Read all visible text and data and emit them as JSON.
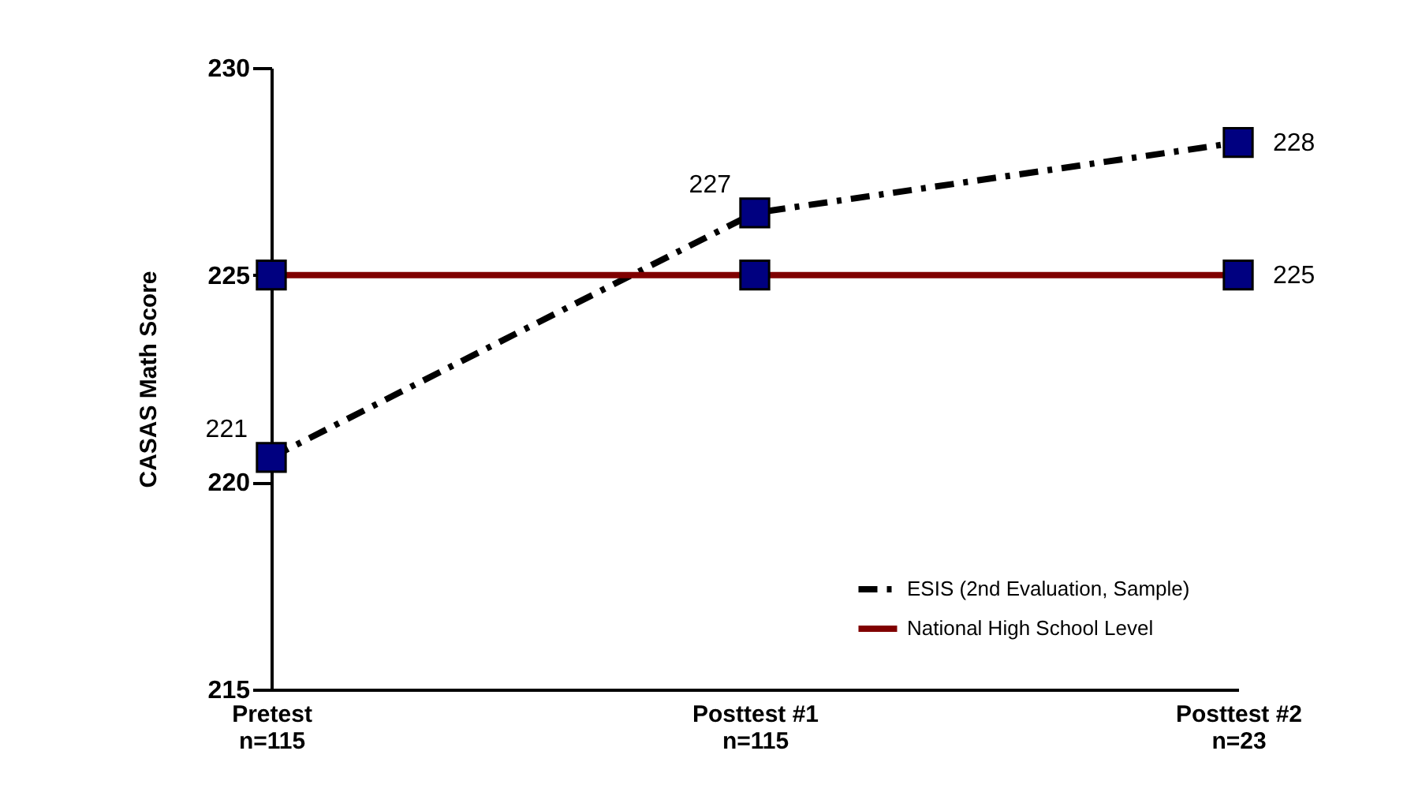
{
  "chart_data": {
    "type": "line",
    "ylabel": "CASAS Math Score",
    "categories": [
      "Pretest\nn=115",
      "Posttest  #1\nn=115",
      "Posttest  #2\nn=23"
    ],
    "series": [
      {
        "name": "ESIS (2nd Evaluation, Sample)",
        "color": "#000000",
        "line_style": "dashed",
        "values": [
          220.6,
          226.5,
          228.2
        ],
        "value_labels": [
          "221",
          "227",
          "228"
        ]
      },
      {
        "name": "National High School Level",
        "color": "#800000",
        "line_style": "solid",
        "values": [
          225,
          225,
          225
        ],
        "value_labels": [
          null,
          null,
          "225"
        ]
      }
    ],
    "ylim": [
      215,
      230
    ],
    "yticks": [
      215,
      220,
      225,
      230
    ],
    "marker": "square",
    "legend": "bottom right",
    "grid": false
  }
}
